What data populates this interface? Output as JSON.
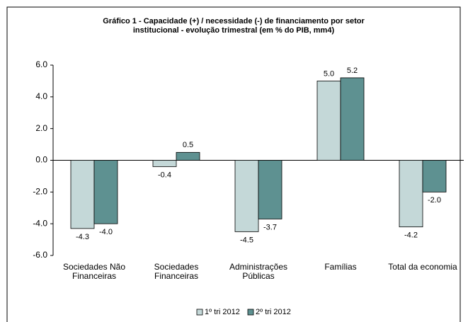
{
  "chart_data": {
    "type": "bar",
    "title": [
      "Gráfico 1 - Capacidade (+) / necessidade (-) de financiamento por setor",
      "institucional -  evolução trimestral (em % do PIB, mm4)"
    ],
    "categories": [
      [
        "Sociedades Não",
        "Financeiras"
      ],
      [
        "Sociedades",
        "Financeiras"
      ],
      [
        "Administrações",
        "Públicas"
      ],
      [
        "Famílias"
      ],
      [
        "Total da economia"
      ]
    ],
    "series": [
      {
        "name": "1º tri 2012",
        "color": "#c4d8d8",
        "values": [
          -4.3,
          -0.4,
          -4.5,
          5.0,
          -4.2
        ],
        "value_labels": [
          "-4.3",
          "-0.4",
          "-4.5",
          "5.0",
          "-4.2"
        ]
      },
      {
        "name": "2º tri 2012",
        "color": "#5e9191",
        "values": [
          -4.0,
          0.5,
          -3.7,
          5.2,
          -2.0
        ],
        "value_labels": [
          "-4.0",
          "0.5",
          "-3.7",
          "5.2",
          "-2.0"
        ]
      }
    ],
    "ylim": [
      -6,
      6
    ],
    "yticks": [
      {
        "value": -6,
        "label": "-6.0"
      },
      {
        "value": -4,
        "label": "-4.0"
      },
      {
        "value": -2,
        "label": "-2.0"
      },
      {
        "value": 0,
        "label": "0.0"
      },
      {
        "value": 2,
        "label": "2.0"
      },
      {
        "value": 4,
        "label": "4.0"
      },
      {
        "value": 6,
        "label": "6.0"
      }
    ],
    "legend": "bottom"
  }
}
